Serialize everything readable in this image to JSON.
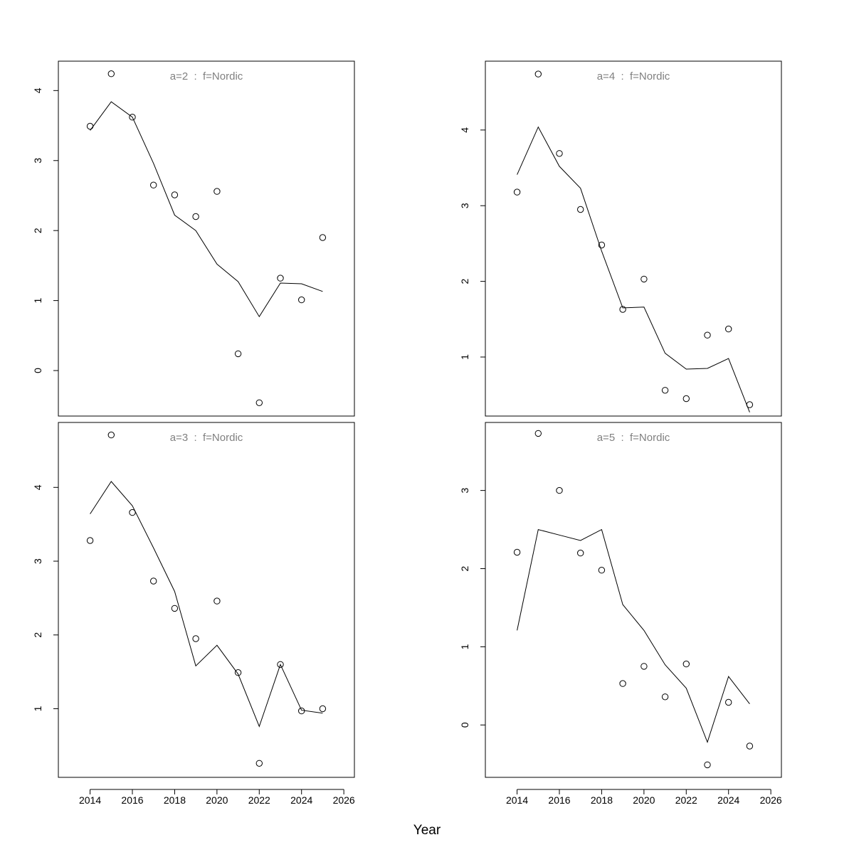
{
  "figure": {
    "xlabel": "Year"
  },
  "chart_data": [
    {
      "type": "scatter+line",
      "panel_label": "a=2  :  f=Nordic",
      "x": [
        2014,
        2015,
        2016,
        2017,
        2018,
        2019,
        2020,
        2021,
        2022,
        2023,
        2024,
        2025
      ],
      "series": [
        {
          "mark": "points",
          "values": [
            3.49,
            4.24,
            3.62,
            2.65,
            2.51,
            2.2,
            2.56,
            0.24,
            -0.46,
            1.32,
            1.01,
            1.9
          ]
        },
        {
          "mark": "line",
          "values": [
            3.43,
            3.84,
            3.62,
            2.96,
            2.22,
            2.0,
            1.52,
            1.27,
            0.77,
            1.25,
            1.24,
            1.13
          ]
        }
      ],
      "xlim": [
        2012.5,
        2026.5
      ],
      "ylim": [
        -0.65,
        4.42
      ],
      "xticks": [],
      "yticks": [
        0,
        1,
        2,
        3,
        4
      ]
    },
    {
      "type": "scatter+line",
      "panel_label": "a=4  :  f=Nordic",
      "x": [
        2014,
        2015,
        2016,
        2017,
        2018,
        2019,
        2020,
        2021,
        2022,
        2023,
        2024,
        2025
      ],
      "series": [
        {
          "mark": "points",
          "values": [
            3.18,
            4.74,
            3.69,
            2.95,
            2.48,
            1.63,
            2.03,
            0.56,
            0.45,
            1.29,
            1.37,
            0.37
          ]
        },
        {
          "mark": "line",
          "values": [
            3.41,
            4.04,
            3.52,
            3.23,
            2.4,
            1.65,
            1.66,
            1.05,
            0.84,
            0.85,
            0.98,
            0.27
          ]
        }
      ],
      "xlim": [
        2012.5,
        2026.5
      ],
      "ylim": [
        0.22,
        4.91
      ],
      "xticks": [],
      "yticks": [
        1,
        2,
        3,
        4
      ]
    },
    {
      "type": "scatter+line",
      "panel_label": "a=3  :  f=Nordic",
      "x": [
        2014,
        2015,
        2016,
        2017,
        2018,
        2019,
        2020,
        2021,
        2022,
        2023,
        2024,
        2025
      ],
      "series": [
        {
          "mark": "points",
          "values": [
            3.28,
            4.71,
            3.66,
            2.73,
            2.36,
            1.95,
            2.46,
            1.49,
            0.26,
            1.6,
            0.97,
            1.0
          ]
        },
        {
          "mark": "line",
          "values": [
            3.64,
            4.08,
            3.75,
            3.18,
            2.59,
            1.58,
            1.86,
            1.47,
            0.76,
            1.6,
            0.98,
            0.94
          ]
        }
      ],
      "xlim": [
        2012.5,
        2026.5
      ],
      "ylim": [
        0.07,
        4.88
      ],
      "xticks": [
        2014,
        2016,
        2018,
        2020,
        2022,
        2024,
        2026
      ],
      "yticks": [
        1,
        2,
        3,
        4
      ]
    },
    {
      "type": "scatter+line",
      "panel_label": "a=5  :  f=Nordic",
      "x": [
        2014,
        2015,
        2016,
        2017,
        2018,
        2019,
        2020,
        2021,
        2022,
        2023,
        2024,
        2025
      ],
      "series": [
        {
          "mark": "points",
          "values": [
            2.21,
            3.73,
            3.0,
            2.2,
            1.98,
            0.53,
            0.75,
            0.36,
            0.78,
            -0.51,
            0.29,
            -0.27
          ]
        },
        {
          "mark": "line",
          "values": [
            1.21,
            2.5,
            2.43,
            2.36,
            2.5,
            1.54,
            1.21,
            0.77,
            0.47,
            -0.22,
            0.62,
            0.27
          ]
        }
      ],
      "xlim": [
        2012.5,
        2026.5
      ],
      "ylim": [
        -0.67,
        3.87
      ],
      "xticks": [
        2014,
        2016,
        2018,
        2020,
        2022,
        2024,
        2026
      ],
      "yticks": [
        0,
        1,
        2,
        3
      ]
    }
  ]
}
